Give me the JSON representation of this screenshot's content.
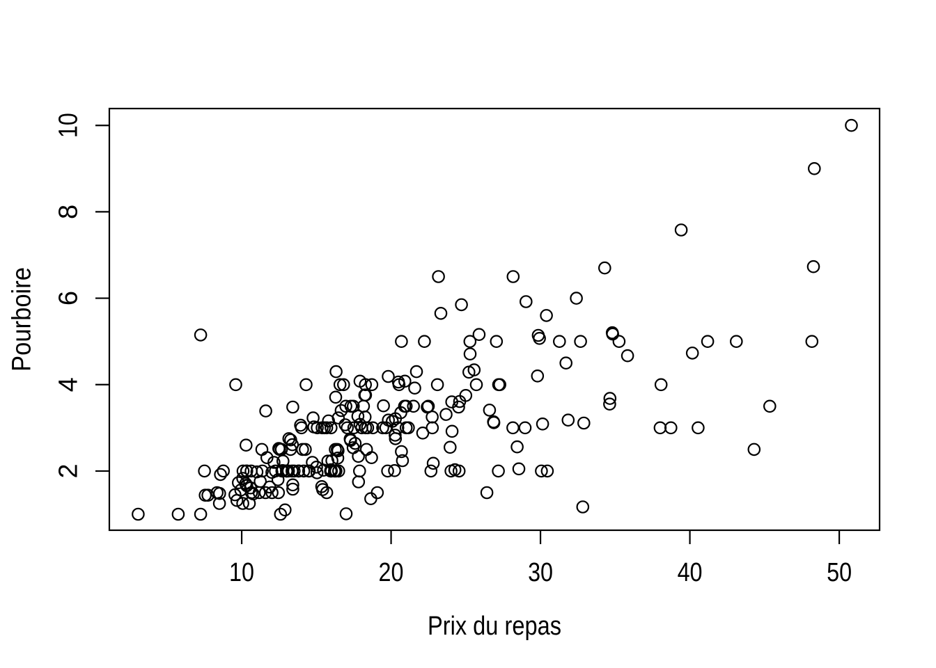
{
  "figure": {
    "background_color": "#ffffff",
    "foreground_color": "#000000"
  },
  "chart_data": {
    "type": "scatter",
    "title": "",
    "xlabel": "Prix du repas",
    "ylabel": "Pourboire",
    "x_ticks": [
      10,
      20,
      30,
      40,
      50
    ],
    "y_ticks": [
      2,
      4,
      6,
      8,
      10
    ],
    "xlim": [
      1.14,
      52.7
    ],
    "ylim": [
      0.63,
      10.39
    ],
    "grid": false,
    "legend": false,
    "marker": "open-circle",
    "marker_color": "#000000",
    "points": [
      [
        16.99,
        1.01
      ],
      [
        10.34,
        1.66
      ],
      [
        21.01,
        3.5
      ],
      [
        23.68,
        3.31
      ],
      [
        24.59,
        3.61
      ],
      [
        25.29,
        4.71
      ],
      [
        8.77,
        2.0
      ],
      [
        26.88,
        3.12
      ],
      [
        15.04,
        1.96
      ],
      [
        14.78,
        3.23
      ],
      [
        10.27,
        1.71
      ],
      [
        35.26,
        5.0
      ],
      [
        15.42,
        1.57
      ],
      [
        18.43,
        3.0
      ],
      [
        14.83,
        3.02
      ],
      [
        21.58,
        3.92
      ],
      [
        10.33,
        1.67
      ],
      [
        16.29,
        3.71
      ],
      [
        16.97,
        3.5
      ],
      [
        20.65,
        3.35
      ],
      [
        17.92,
        4.08
      ],
      [
        20.29,
        2.75
      ],
      [
        15.77,
        2.23
      ],
      [
        39.42,
        7.58
      ],
      [
        19.82,
        3.18
      ],
      [
        17.81,
        2.34
      ],
      [
        13.37,
        2.0
      ],
      [
        12.69,
        2.0
      ],
      [
        21.7,
        4.3
      ],
      [
        19.65,
        3.0
      ],
      [
        9.55,
        1.45
      ],
      [
        18.35,
        2.5
      ],
      [
        15.06,
        3.0
      ],
      [
        20.69,
        2.45
      ],
      [
        17.78,
        3.27
      ],
      [
        24.06,
        3.6
      ],
      [
        16.31,
        2.0
      ],
      [
        16.93,
        3.07
      ],
      [
        18.69,
        2.31
      ],
      [
        31.27,
        5.0
      ],
      [
        16.04,
        2.24
      ],
      [
        17.46,
        2.54
      ],
      [
        13.94,
        3.06
      ],
      [
        9.68,
        1.32
      ],
      [
        30.4,
        5.6
      ],
      [
        18.29,
        3.0
      ],
      [
        22.23,
        5.0
      ],
      [
        32.4,
        6.0
      ],
      [
        28.55,
        2.05
      ],
      [
        18.04,
        3.0
      ],
      [
        12.54,
        2.5
      ],
      [
        10.29,
        2.6
      ],
      [
        34.81,
        5.2
      ],
      [
        9.94,
        1.56
      ],
      [
        25.56,
        4.34
      ],
      [
        19.49,
        3.51
      ],
      [
        38.01,
        3.0
      ],
      [
        26.41,
        1.5
      ],
      [
        11.24,
        1.76
      ],
      [
        48.27,
        6.73
      ],
      [
        20.29,
        3.21
      ],
      [
        13.81,
        2.0
      ],
      [
        11.02,
        1.98
      ],
      [
        18.29,
        3.76
      ],
      [
        17.59,
        2.64
      ],
      [
        20.08,
        3.15
      ],
      [
        16.45,
        2.47
      ],
      [
        3.07,
        1.0
      ],
      [
        20.23,
        2.01
      ],
      [
        15.01,
        2.09
      ],
      [
        12.02,
        1.97
      ],
      [
        17.07,
        3.0
      ],
      [
        26.86,
        3.14
      ],
      [
        25.28,
        5.0
      ],
      [
        14.73,
        2.2
      ],
      [
        10.51,
        1.25
      ],
      [
        17.92,
        3.08
      ],
      [
        27.2,
        4.0
      ],
      [
        22.76,
        3.0
      ],
      [
        17.29,
        2.71
      ],
      [
        19.44,
        3.0
      ],
      [
        16.66,
        3.4
      ],
      [
        10.07,
        1.83
      ],
      [
        32.68,
        5.0
      ],
      [
        15.98,
        2.03
      ],
      [
        34.83,
        5.17
      ],
      [
        13.03,
        2.0
      ],
      [
        18.28,
        4.0
      ],
      [
        24.71,
        5.85
      ],
      [
        21.16,
        3.0
      ],
      [
        28.97,
        3.0
      ],
      [
        22.49,
        3.5
      ],
      [
        5.75,
        1.0
      ],
      [
        16.32,
        4.3
      ],
      [
        22.75,
        3.25
      ],
      [
        40.17,
        4.73
      ],
      [
        27.28,
        4.0
      ],
      [
        12.03,
        1.5
      ],
      [
        21.01,
        3.0
      ],
      [
        12.46,
        1.5
      ],
      [
        11.35,
        2.5
      ],
      [
        15.38,
        3.0
      ],
      [
        44.3,
        2.5
      ],
      [
        22.42,
        3.48
      ],
      [
        20.92,
        4.08
      ],
      [
        15.36,
        1.64
      ],
      [
        20.49,
        4.06
      ],
      [
        25.21,
        4.29
      ],
      [
        18.24,
        3.76
      ],
      [
        14.31,
        4.0
      ],
      [
        14.0,
        3.0
      ],
      [
        7.25,
        1.0
      ],
      [
        38.07,
        4.0
      ],
      [
        23.95,
        2.55
      ],
      [
        25.71,
        4.0
      ],
      [
        17.31,
        3.5
      ],
      [
        29.93,
        5.07
      ],
      [
        10.65,
        1.5
      ],
      [
        12.43,
        1.8
      ],
      [
        24.08,
        2.92
      ],
      [
        11.69,
        2.31
      ],
      [
        13.42,
        1.68
      ],
      [
        14.26,
        2.5
      ],
      [
        15.95,
        2.0
      ],
      [
        12.48,
        2.52
      ],
      [
        29.8,
        4.2
      ],
      [
        8.52,
        1.48
      ],
      [
        14.52,
        2.0
      ],
      [
        11.38,
        2.0
      ],
      [
        22.82,
        2.18
      ],
      [
        19.08,
        1.5
      ],
      [
        20.27,
        2.83
      ],
      [
        11.17,
        1.5
      ],
      [
        12.26,
        2.0
      ],
      [
        18.26,
        3.25
      ],
      [
        8.51,
        1.25
      ],
      [
        10.33,
        2.0
      ],
      [
        14.15,
        2.0
      ],
      [
        16.0,
        2.0
      ],
      [
        13.16,
        2.75
      ],
      [
        17.47,
        3.5
      ],
      [
        34.3,
        6.7
      ],
      [
        41.19,
        5.0
      ],
      [
        27.05,
        5.0
      ],
      [
        16.43,
        2.3
      ],
      [
        8.35,
        1.5
      ],
      [
        18.64,
        1.36
      ],
      [
        11.87,
        1.63
      ],
      [
        9.78,
        1.73
      ],
      [
        7.51,
        2.0
      ],
      [
        14.07,
        2.5
      ],
      [
        13.13,
        2.0
      ],
      [
        17.26,
        2.74
      ],
      [
        24.55,
        2.0
      ],
      [
        19.77,
        2.0
      ],
      [
        29.85,
        5.14
      ],
      [
        48.17,
        5.0
      ],
      [
        25.0,
        3.75
      ],
      [
        13.39,
        2.61
      ],
      [
        16.49,
        2.0
      ],
      [
        21.5,
        3.5
      ],
      [
        12.66,
        2.5
      ],
      [
        16.21,
        2.0
      ],
      [
        13.81,
        2.0
      ],
      [
        17.51,
        3.0
      ],
      [
        24.52,
        3.48
      ],
      [
        20.76,
        2.24
      ],
      [
        31.71,
        4.5
      ],
      [
        10.59,
        1.61
      ],
      [
        10.63,
        2.0
      ],
      [
        50.81,
        10.0
      ],
      [
        15.81,
        3.16
      ],
      [
        7.25,
        5.15
      ],
      [
        31.85,
        3.18
      ],
      [
        16.82,
        4.0
      ],
      [
        32.9,
        3.11
      ],
      [
        17.89,
        2.0
      ],
      [
        14.48,
        2.0
      ],
      [
        9.6,
        4.0
      ],
      [
        34.63,
        3.55
      ],
      [
        34.65,
        3.68
      ],
      [
        23.33,
        5.65
      ],
      [
        45.35,
        3.5
      ],
      [
        23.17,
        6.5
      ],
      [
        40.55,
        3.0
      ],
      [
        20.69,
        5.0
      ],
      [
        20.9,
        3.5
      ],
      [
        30.46,
        2.0
      ],
      [
        18.15,
        3.5
      ],
      [
        23.1,
        4.0
      ],
      [
        15.69,
        1.5
      ],
      [
        19.81,
        4.19
      ],
      [
        28.44,
        2.56
      ],
      [
        15.48,
        2.02
      ],
      [
        16.58,
        4.0
      ],
      [
        7.56,
        1.44
      ],
      [
        10.34,
        2.0
      ],
      [
        43.11,
        5.0
      ],
      [
        13.0,
        2.0
      ],
      [
        13.51,
        2.0
      ],
      [
        18.71,
        4.0
      ],
      [
        12.74,
        2.01
      ],
      [
        13.0,
        2.0
      ],
      [
        16.4,
        2.5
      ],
      [
        20.53,
        4.0
      ],
      [
        16.47,
        3.23
      ],
      [
        26.59,
        3.41
      ],
      [
        38.73,
        3.0
      ],
      [
        24.27,
        2.03
      ],
      [
        12.76,
        2.23
      ],
      [
        30.06,
        2.0
      ],
      [
        25.89,
        5.16
      ],
      [
        48.33,
        9.0
      ],
      [
        13.27,
        2.5
      ],
      [
        28.17,
        6.5
      ],
      [
        12.9,
        1.1
      ],
      [
        28.15,
        3.0
      ],
      [
        11.59,
        1.5
      ],
      [
        7.74,
        1.44
      ],
      [
        30.14,
        3.09
      ],
      [
        12.16,
        2.2
      ],
      [
        13.42,
        3.48
      ],
      [
        8.58,
        1.92
      ],
      [
        15.98,
        3.0
      ],
      [
        13.42,
        1.58
      ],
      [
        16.27,
        2.5
      ],
      [
        10.09,
        2.0
      ],
      [
        20.45,
        3.0
      ],
      [
        13.28,
        2.72
      ],
      [
        22.12,
        2.88
      ],
      [
        24.01,
        2.0
      ],
      [
        15.69,
        3.0
      ],
      [
        11.61,
        3.39
      ],
      [
        10.77,
        1.47
      ],
      [
        15.53,
        3.0
      ],
      [
        10.07,
        1.25
      ],
      [
        12.6,
        1.0
      ],
      [
        32.83,
        1.17
      ],
      [
        35.83,
        4.67
      ],
      [
        29.03,
        5.92
      ],
      [
        27.18,
        2.0
      ],
      [
        22.67,
        2.0
      ],
      [
        17.82,
        1.75
      ],
      [
        18.78,
        3.0
      ]
    ]
  }
}
